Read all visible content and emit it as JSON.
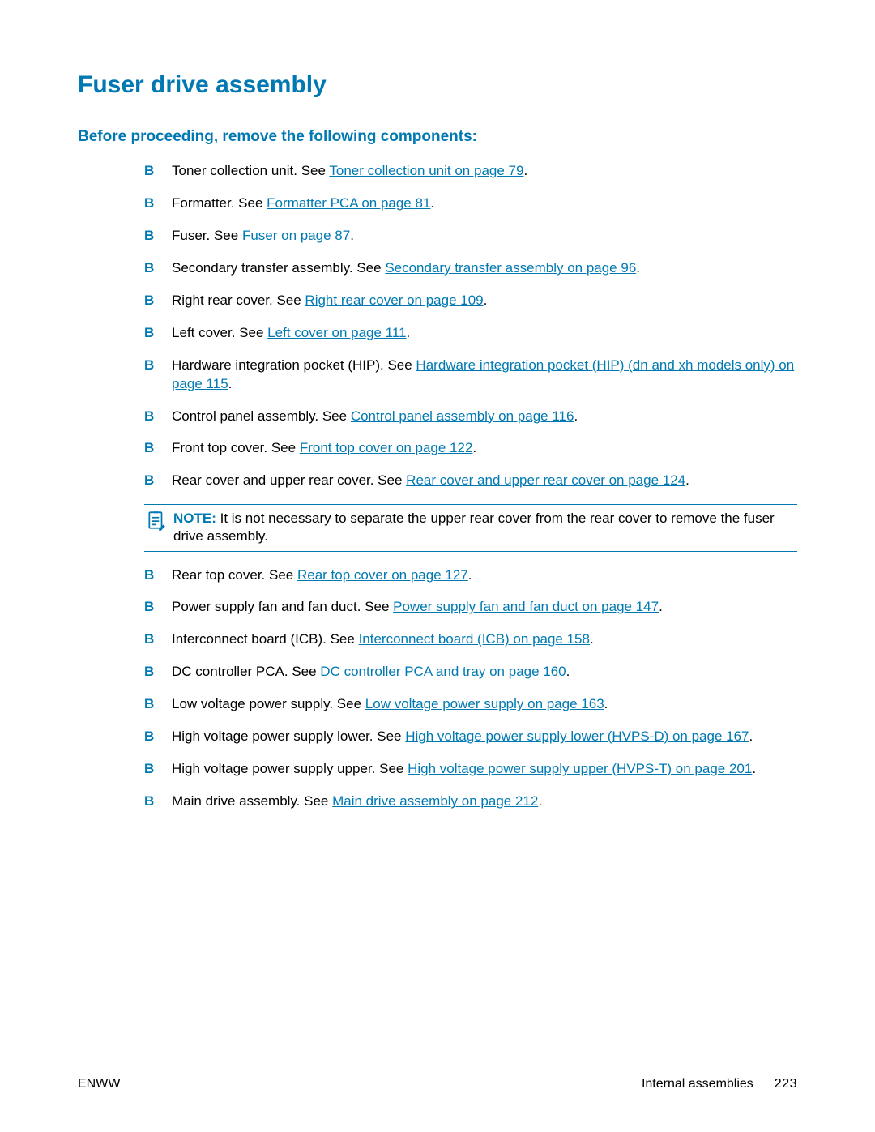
{
  "colors": {
    "accent": "#0079b3",
    "text": "#000000",
    "bg": "#ffffff"
  },
  "title": "Fuser drive assembly",
  "subheading": "Before proceeding, remove the following components:",
  "items": [
    {
      "prefix": "Toner collection unit. See ",
      "link": "Toner collection unit on page 79",
      "suffix": "."
    },
    {
      "prefix": "Formatter. See ",
      "link": "Formatter PCA on page 81",
      "suffix": "."
    },
    {
      "prefix": "Fuser. See ",
      "link": "Fuser on page 87",
      "suffix": "."
    },
    {
      "prefix": "Secondary transfer assembly. See ",
      "link": "Secondary transfer assembly on page 96",
      "suffix": "."
    },
    {
      "prefix": "Right rear cover. See ",
      "link": "Right rear cover on page 109",
      "suffix": "."
    },
    {
      "prefix": "Left cover. See ",
      "link": "Left cover on page 111",
      "suffix": "."
    },
    {
      "prefix": "Hardware integration pocket (HIP). See ",
      "link": "Hardware integration pocket (HIP) (dn and xh models only) on page 115",
      "suffix": "."
    },
    {
      "prefix": "Control panel assembly. See ",
      "link": "Control panel assembly on page 116",
      "suffix": "."
    },
    {
      "prefix": "Front top cover. See ",
      "link": "Front top cover on page 122",
      "suffix": "."
    },
    {
      "prefix": "Rear cover and upper rear cover. See ",
      "link": "Rear cover and upper rear cover on page 124",
      "suffix": ".",
      "note": {
        "label": "NOTE:",
        "text": "   It is not necessary to separate the upper rear cover from the rear cover to remove the fuser drive assembly."
      }
    },
    {
      "prefix": "Rear top cover. See ",
      "link": "Rear top cover on page 127",
      "suffix": "."
    },
    {
      "prefix": "Power supply fan and fan duct. See ",
      "link": "Power supply fan and fan duct on page 147",
      "suffix": "."
    },
    {
      "prefix": "Interconnect board (ICB). See ",
      "link": "Interconnect board (ICB) on page 158",
      "suffix": "."
    },
    {
      "prefix": "DC controller PCA. See ",
      "link": "DC controller PCA and tray on page 160",
      "suffix": "."
    },
    {
      "prefix": "Low voltage power supply. See ",
      "link": "Low voltage power supply on page 163",
      "suffix": "."
    },
    {
      "prefix": "High voltage power supply lower. See ",
      "link": "High voltage power supply lower (HVPS-D) on page 167",
      "suffix": "."
    },
    {
      "prefix": "High voltage power supply upper. See ",
      "link": "High voltage power supply upper (HVPS-T) on page 201",
      "suffix": "."
    },
    {
      "prefix": "Main drive assembly. See ",
      "link": "Main drive assembly on page 212",
      "suffix": "."
    }
  ],
  "footer": {
    "left": "ENWW",
    "right_text": "Internal assemblies",
    "page": "223"
  }
}
